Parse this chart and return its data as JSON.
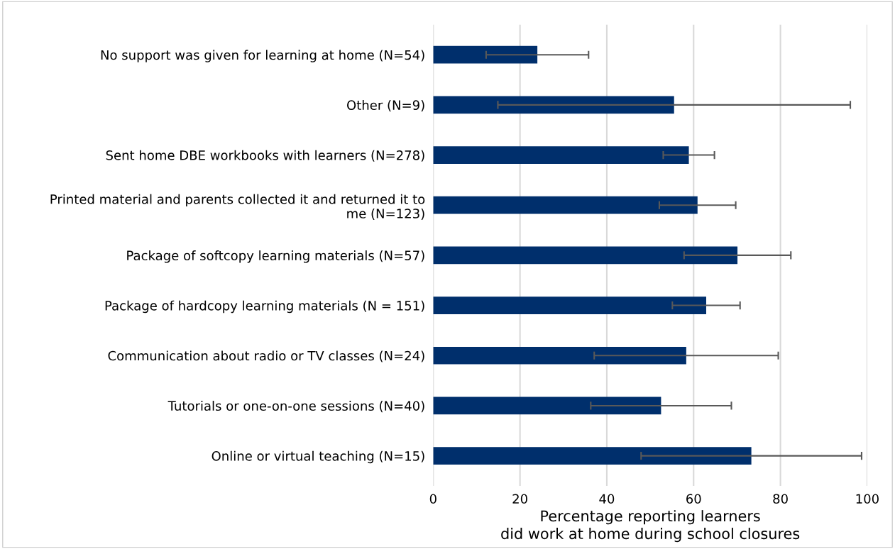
{
  "chart_data": {
    "type": "bar",
    "orientation": "horizontal",
    "xlabel": "Percentage reporting learners did work at home during school closures",
    "categories": [
      "No support was given for learning at home (N=54)",
      "Other (N=9)",
      "Sent home DBE workbooks with learners (N=278)",
      "Printed material and parents collected it and returned it to me (N=123)",
      "Package of softcopy learning materials (N=57)",
      "Package of hardcopy learning materials (N = 151)",
      "Communication about radio or TV classes (N=24)",
      "Tutorials or one-on-one sessions (N=40)",
      "Online or virtual teaching (N=15)"
    ],
    "values": [
      24.0,
      55.5,
      58.9,
      60.9,
      70.1,
      62.9,
      58.3,
      52.5,
      73.3
    ],
    "errors": [
      11.8,
      40.6,
      5.9,
      8.8,
      12.3,
      7.8,
      21.2,
      16.2,
      25.4
    ],
    "color": "#002f6c",
    "xlim": [
      0,
      100
    ],
    "xticks": [
      0,
      20,
      40,
      60,
      80,
      100
    ],
    "grid": "x",
    "legend": false
  }
}
